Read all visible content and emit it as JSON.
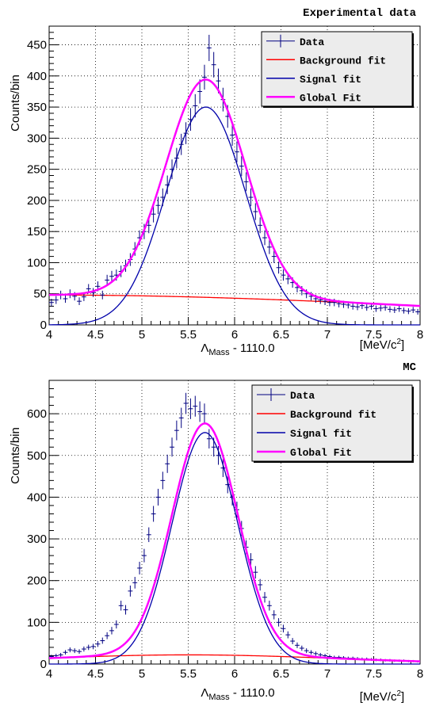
{
  "chart_data": [
    {
      "type": "line",
      "title": "Experimental data",
      "xlabel_main": "Λ",
      "xlabel_sub": "Mass",
      "xlabel_rest": " - 1110.0",
      "xunit": "[MeV/c",
      "xunit_sup": "2",
      "xunit_close": "]",
      "ylabel": "Counts/bin",
      "xlim": [
        4,
        8
      ],
      "ylim": [
        0,
        480
      ],
      "xticks": [
        4,
        4.5,
        5,
        5.5,
        6,
        6.5,
        7,
        7.5,
        8
      ],
      "xtick_labels": [
        "4",
        "4.5",
        "5",
        "5.5",
        "6",
        "6.5",
        "7",
        "7.5",
        "8"
      ],
      "yticks": [
        0,
        50,
        100,
        150,
        200,
        250,
        300,
        350,
        400,
        450
      ],
      "ytick_labels": [
        "0",
        "50",
        "100",
        "150",
        "200",
        "250",
        "300",
        "350",
        "400",
        "450"
      ],
      "grid": true,
      "legend_position": "top-right",
      "series": [
        {
          "name": "Data",
          "kind": "points",
          "color": "#000080",
          "err_from_sqrt": true,
          "x": [
            4.025,
            4.075,
            4.125,
            4.175,
            4.225,
            4.275,
            4.325,
            4.375,
            4.425,
            4.475,
            4.525,
            4.575,
            4.625,
            4.675,
            4.725,
            4.775,
            4.825,
            4.875,
            4.925,
            4.975,
            5.025,
            5.075,
            5.125,
            5.175,
            5.225,
            5.275,
            5.325,
            5.375,
            5.425,
            5.475,
            5.525,
            5.575,
            5.625,
            5.675,
            5.725,
            5.775,
            5.825,
            5.875,
            5.925,
            5.975,
            6.025,
            6.075,
            6.125,
            6.175,
            6.225,
            6.275,
            6.325,
            6.375,
            6.425,
            6.475,
            6.525,
            6.575,
            6.625,
            6.675,
            6.725,
            6.775,
            6.825,
            6.875,
            6.925,
            6.975,
            7.025,
            7.075,
            7.125,
            7.175,
            7.225,
            7.275,
            7.325,
            7.375,
            7.425,
            7.475,
            7.525,
            7.575,
            7.625,
            7.675,
            7.725,
            7.775,
            7.825,
            7.875,
            7.925,
            7.975
          ],
          "y": [
            36,
            40,
            48,
            42,
            50,
            46,
            38,
            45,
            58,
            52,
            62,
            48,
            72,
            78,
            80,
            86,
            95,
            105,
            122,
            140,
            150,
            160,
            178,
            192,
            205,
            225,
            250,
            268,
            290,
            308,
            330,
            352,
            375,
            398,
            445,
            418,
            392,
            362,
            335,
            305,
            278,
            255,
            230,
            205,
            182,
            160,
            140,
            125,
            110,
            92,
            80,
            74,
            68,
            60,
            55,
            50,
            46,
            42,
            40,
            38,
            36,
            36,
            34,
            33,
            32,
            30,
            29,
            31,
            28,
            30,
            26,
            27,
            28,
            25,
            24,
            26,
            23,
            22,
            24,
            21
          ]
        },
        {
          "name": "Background fit",
          "kind": "line",
          "color": "#ff0000",
          "bg_a": 48,
          "bg_mu": 4.0,
          "bg_s": 4.2
        },
        {
          "name": "Signal fit",
          "kind": "line",
          "color": "#0000aa",
          "amp": 350,
          "mu": 5.69,
          "sigma": 0.43
        },
        {
          "name": "Global Fit",
          "kind": "line",
          "color": "#ff00ff",
          "width": 2.5
        }
      ]
    },
    {
      "type": "line",
      "title": "MC",
      "xlabel_main": "Λ",
      "xlabel_sub": "Mass",
      "xlabel_rest": " - 1110.0",
      "xunit": "[MeV/c",
      "xunit_sup": "2",
      "xunit_close": "]",
      "ylabel": "Counts/bin",
      "xlim": [
        4,
        8
      ],
      "ylim": [
        0,
        680
      ],
      "xticks": [
        4,
        4.5,
        5,
        5.5,
        6,
        6.5,
        7,
        7.5,
        8
      ],
      "xtick_labels": [
        "4",
        "4.5",
        "5",
        "5.5",
        "6",
        "6.5",
        "7",
        "7.5",
        "8"
      ],
      "yticks": [
        0,
        100,
        200,
        300,
        400,
        500,
        600
      ],
      "ytick_labels": [
        "0",
        "100",
        "200",
        "300",
        "400",
        "500",
        "600"
      ],
      "grid": true,
      "legend_position": "top-right",
      "series": [
        {
          "name": "Data",
          "kind": "points",
          "color": "#000080",
          "err_from_sqrt": true,
          "x": [
            4.025,
            4.075,
            4.125,
            4.175,
            4.225,
            4.275,
            4.325,
            4.375,
            4.425,
            4.475,
            4.525,
            4.575,
            4.625,
            4.675,
            4.725,
            4.775,
            4.825,
            4.875,
            4.925,
            4.975,
            5.025,
            5.075,
            5.125,
            5.175,
            5.225,
            5.275,
            5.325,
            5.375,
            5.425,
            5.475,
            5.525,
            5.575,
            5.625,
            5.675,
            5.725,
            5.775,
            5.825,
            5.875,
            5.925,
            5.975,
            6.025,
            6.075,
            6.125,
            6.175,
            6.225,
            6.275,
            6.325,
            6.375,
            6.425,
            6.475,
            6.525,
            6.575,
            6.625,
            6.675,
            6.725,
            6.775,
            6.825,
            6.875,
            6.925,
            6.975,
            7.025,
            7.075,
            7.125,
            7.175,
            7.225,
            7.275,
            7.325,
            7.375,
            7.425,
            7.475,
            7.525,
            7.575,
            7.625,
            7.675,
            7.725,
            7.775,
            7.825,
            7.875,
            7.925,
            7.975
          ],
          "y": [
            18,
            20,
            22,
            28,
            34,
            32,
            30,
            36,
            40,
            42,
            48,
            56,
            68,
            80,
            95,
            140,
            130,
            175,
            195,
            230,
            260,
            310,
            360,
            400,
            440,
            480,
            520,
            560,
            590,
            625,
            612,
            618,
            605,
            600,
            540,
            520,
            500,
            470,
            430,
            400,
            370,
            325,
            280,
            250,
            220,
            190,
            160,
            140,
            118,
            100,
            85,
            70,
            55,
            45,
            38,
            32,
            28,
            25,
            22,
            20,
            18,
            16,
            16,
            15,
            14,
            14,
            13,
            12,
            12,
            11,
            10,
            10,
            9,
            9,
            8,
            8,
            8,
            7,
            7,
            6
          ]
        },
        {
          "name": "Background fit",
          "kind": "line",
          "color": "#ff0000",
          "bg_a": 22,
          "bg_mu": 5.5,
          "bg_s": 1.6
        },
        {
          "name": "Signal fit",
          "kind": "line",
          "color": "#0000aa",
          "amp": 555,
          "mu": 5.68,
          "sigma": 0.355
        },
        {
          "name": "Global Fit",
          "kind": "line",
          "color": "#ff00ff",
          "width": 2.5
        }
      ]
    }
  ]
}
